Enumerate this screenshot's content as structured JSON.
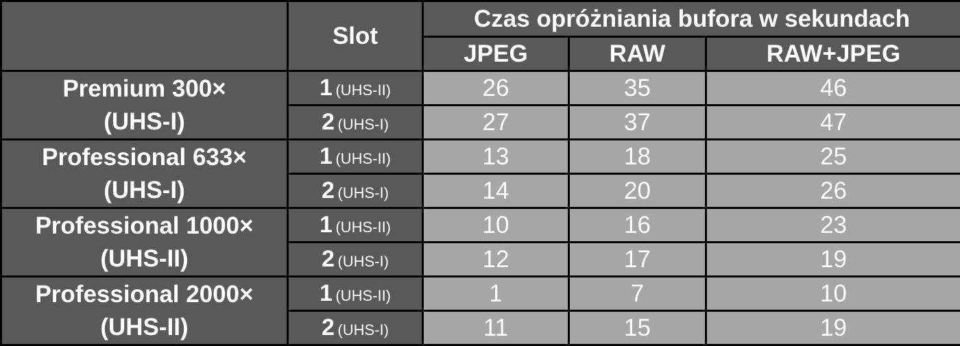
{
  "table": {
    "header": {
      "slot": "Slot",
      "group": "Czas opróżniania bufora w sekundach",
      "columns": [
        "JPEG",
        "RAW",
        "RAW+JPEG"
      ]
    },
    "cards": [
      {
        "name": "Premium 300×",
        "bus": "(UHS-I)",
        "rows": [
          {
            "slot": "1",
            "slot_type": "(UHS-II)",
            "values": [
              26,
              35,
              46
            ]
          },
          {
            "slot": "2",
            "slot_type": "(UHS-I)",
            "values": [
              27,
              37,
              47
            ]
          }
        ]
      },
      {
        "name": "Professional 633×",
        "bus": "(UHS-I)",
        "rows": [
          {
            "slot": "1",
            "slot_type": "(UHS-II)",
            "values": [
              13,
              18,
              25
            ]
          },
          {
            "slot": "2",
            "slot_type": "(UHS-I)",
            "values": [
              14,
              20,
              26
            ]
          }
        ]
      },
      {
        "name": "Professional 1000×",
        "bus": "(UHS-II)",
        "rows": [
          {
            "slot": "1",
            "slot_type": "(UHS-II)",
            "values": [
              10,
              16,
              23
            ]
          },
          {
            "slot": "2",
            "slot_type": "(UHS-I)",
            "values": [
              12,
              17,
              19
            ]
          }
        ]
      },
      {
        "name": "Professional 2000×",
        "bus": "(UHS-II)",
        "rows": [
          {
            "slot": "1",
            "slot_type": "(UHS-II)",
            "values": [
              1,
              7,
              10
            ]
          },
          {
            "slot": "2",
            "slot_type": "(UHS-I)",
            "values": [
              11,
              15,
              19
            ]
          }
        ]
      }
    ]
  }
}
